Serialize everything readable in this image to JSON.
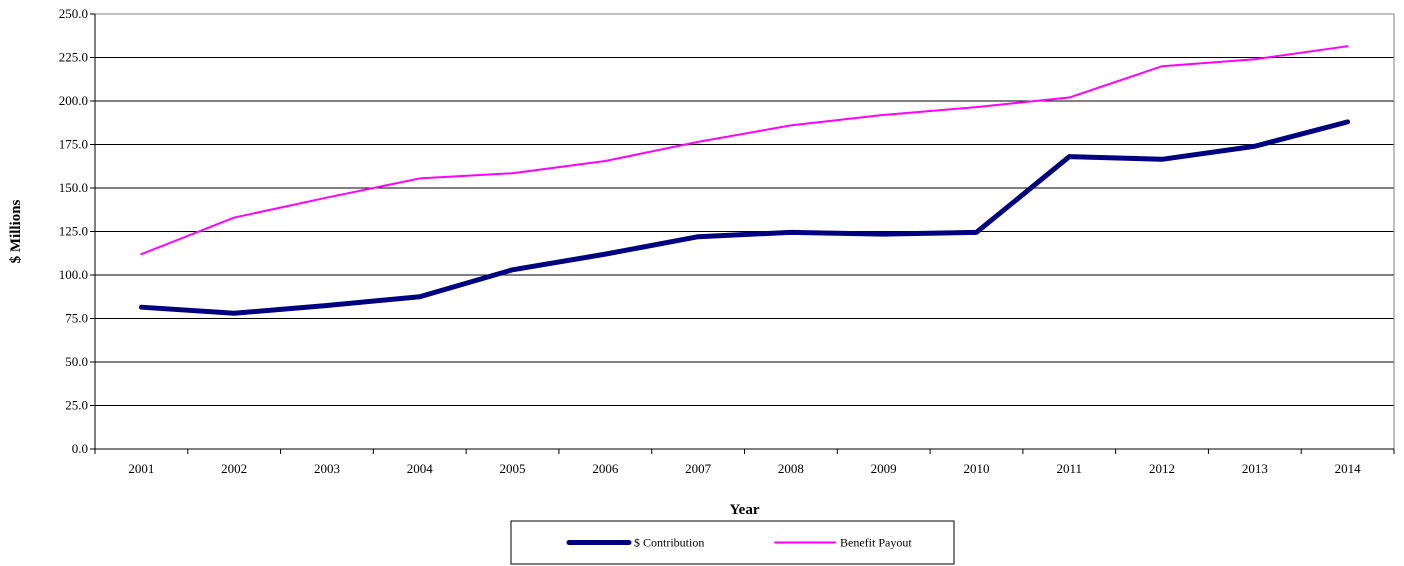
{
  "chart_data": {
    "type": "line",
    "title": "",
    "xlabel": "Year",
    "ylabel": "$ Millions",
    "categories": [
      "2001",
      "2002",
      "2003",
      "2004",
      "2005",
      "2006",
      "2007",
      "2008",
      "2009",
      "2010",
      "2011",
      "2012",
      "2013",
      "2014"
    ],
    "series": [
      {
        "name": "$ Contribution",
        "color": "#000080",
        "values": [
          81.5,
          78.0,
          82.5,
          87.5,
          103.0,
          112.0,
          122.0,
          124.5,
          123.5,
          124.5,
          168.0,
          166.5,
          174.0,
          188.0
        ]
      },
      {
        "name": "Benefit Payout",
        "color": "#ff00ff",
        "values": [
          112.0,
          133.0,
          144.5,
          155.5,
          158.5,
          165.5,
          176.5,
          186.0,
          192.0,
          196.5,
          202.0,
          220.0,
          224.0,
          231.5
        ]
      }
    ],
    "ylim": [
      0,
      250
    ],
    "yticks": [
      "0.0",
      "25.0",
      "50.0",
      "75.0",
      "100.0",
      "125.0",
      "150.0",
      "175.0",
      "200.0",
      "225.0",
      "250.0"
    ],
    "grid": true,
    "legend": "bottom-center"
  }
}
